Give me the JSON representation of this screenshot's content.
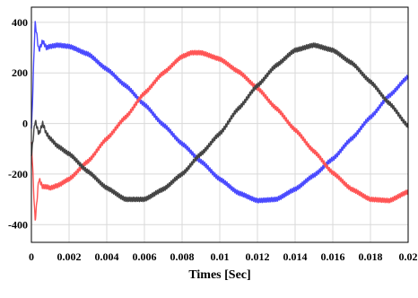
{
  "chart_data": {
    "type": "line",
    "title": "",
    "xlabel": "Times [Sec]",
    "ylabel": "",
    "xlim": [
      0,
      0.02
    ],
    "ylim": [
      -470,
      460
    ],
    "xticks": [
      0,
      0.002,
      0.004,
      0.006,
      0.008,
      0.01,
      0.012,
      0.014,
      0.016,
      0.018,
      0.02
    ],
    "xtick_labels": [
      "0",
      "0.002",
      "0.004",
      "0.006",
      "0.008",
      "0.01",
      "0.012",
      "0.014",
      "0.016",
      "0.018",
      "0.02"
    ],
    "yticks": [
      400,
      200,
      0,
      -200,
      -400
    ],
    "ytick_labels": [
      "400",
      "200",
      "0",
      "-200",
      "-400"
    ],
    "grid": true,
    "legend": "none",
    "series": [
      {
        "color": "#4a4aff",
        "x": [
          0,
          0.0002,
          0.0004,
          0.0006,
          0.0008,
          0.001,
          0.0014,
          0.002,
          0.003,
          0.004,
          0.005,
          0.006,
          0.007,
          0.008,
          0.009,
          0.01,
          0.011,
          0.012,
          0.013,
          0.014,
          0.015,
          0.016,
          0.017,
          0.018,
          0.019,
          0.02
        ],
        "values": [
          -20,
          395,
          290,
          325,
          300,
          305,
          310,
          305,
          275,
          215,
          150,
          75,
          -5,
          -80,
          -150,
          -220,
          -275,
          -305,
          -300,
          -260,
          -205,
          -140,
          -60,
          25,
          110,
          185
        ]
      },
      {
        "color": "#ff5555",
        "x": [
          0,
          0.0002,
          0.0004,
          0.0006,
          0.0008,
          0.001,
          0.0014,
          0.002,
          0.003,
          0.004,
          0.005,
          0.006,
          0.007,
          0.008,
          0.0085,
          0.009,
          0.01,
          0.011,
          0.012,
          0.013,
          0.014,
          0.015,
          0.016,
          0.017,
          0.018,
          0.019,
          0.02
        ],
        "values": [
          -80,
          -380,
          -220,
          -250,
          -250,
          -255,
          -245,
          -220,
          -150,
          -60,
          25,
          120,
          200,
          265,
          280,
          280,
          255,
          205,
          140,
          60,
          -25,
          -110,
          -195,
          -260,
          -300,
          -305,
          -270
        ]
      },
      {
        "color": "#444444",
        "x": [
          0,
          0.0002,
          0.0004,
          0.0006,
          0.0008,
          0.001,
          0.0014,
          0.002,
          0.003,
          0.004,
          0.005,
          0.006,
          0.007,
          0.008,
          0.009,
          0.01,
          0.011,
          0.012,
          0.013,
          0.014,
          0.015,
          0.016,
          0.017,
          0.018,
          0.019,
          0.02
        ],
        "values": [
          -120,
          10,
          -40,
          0,
          -40,
          -60,
          -90,
          -120,
          -190,
          -255,
          -300,
          -300,
          -260,
          -200,
          -120,
          -40,
          60,
          150,
          230,
          290,
          310,
          290,
          240,
          165,
          80,
          -10
        ]
      }
    ]
  }
}
